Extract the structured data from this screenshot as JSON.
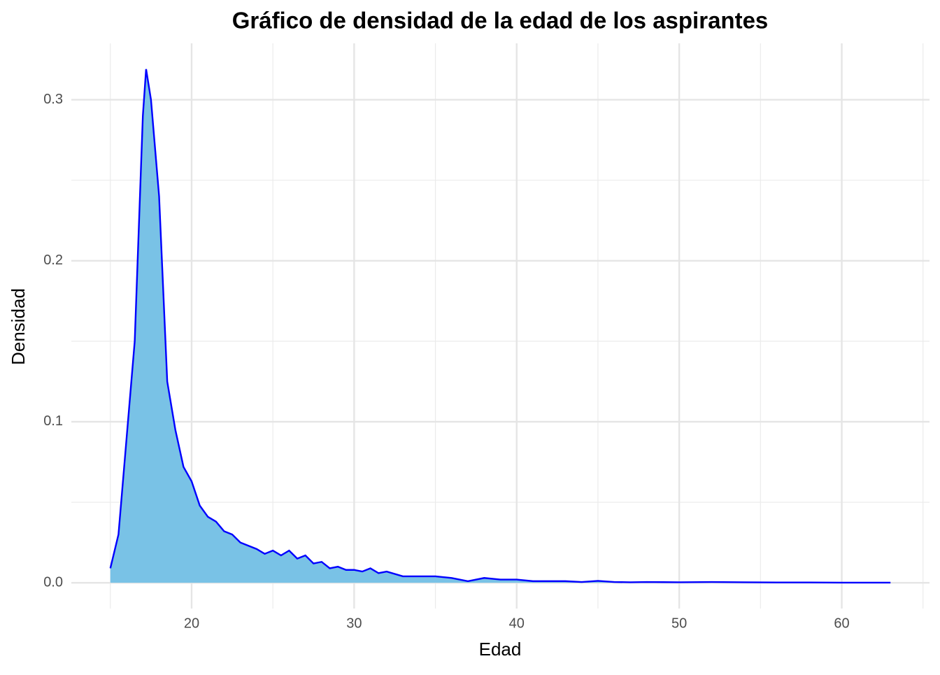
{
  "chart_data": {
    "type": "area",
    "title": "Gráfico de densidad de la edad de los aspirantes",
    "x_label": "Edad",
    "y_label": "Densidad",
    "x": [
      15,
      15.5,
      16,
      16.5,
      17,
      17.2,
      17.5,
      18,
      18.5,
      19,
      19.5,
      20,
      20.5,
      21,
      21.5,
      22,
      22.5,
      23,
      23.5,
      24,
      24.5,
      25,
      25.5,
      26,
      26.5,
      27,
      27.5,
      28,
      28.5,
      29,
      29.5,
      30,
      30.5,
      31,
      31.5,
      32,
      33,
      34,
      35,
      36,
      37,
      38,
      39,
      40,
      41,
      42,
      43,
      44,
      45,
      46,
      47,
      48,
      49,
      50,
      52,
      54,
      56,
      58,
      60,
      63
    ],
    "values": [
      0.009,
      0.03,
      0.09,
      0.15,
      0.29,
      0.319,
      0.3,
      0.24,
      0.125,
      0.095,
      0.072,
      0.063,
      0.048,
      0.041,
      0.038,
      0.032,
      0.03,
      0.025,
      0.023,
      0.021,
      0.018,
      0.02,
      0.017,
      0.02,
      0.015,
      0.017,
      0.012,
      0.013,
      0.009,
      0.01,
      0.008,
      0.008,
      0.007,
      0.009,
      0.006,
      0.007,
      0.004,
      0.004,
      0.004,
      0.003,
      0.001,
      0.003,
      0.002,
      0.002,
      0.001,
      0.001,
      0.001,
      0.0005,
      0.0012,
      0.0005,
      0.0003,
      0.0005,
      0.0004,
      0.0003,
      0.0005,
      0.0003,
      0.0002,
      0.0002,
      0.0001,
      0.0001
    ],
    "fill": "#79c2e6",
    "color": "#0000ff",
    "xlim": [
      12.6,
      65.4
    ],
    "xticks": [
      20,
      30,
      40,
      50,
      60
    ],
    "ylim": [
      -0.016,
      0.335
    ],
    "yticks": [
      {
        "value": 0,
        "label": "0.0"
      },
      0.1,
      0.2,
      0.3
    ],
    "grid": true
  }
}
